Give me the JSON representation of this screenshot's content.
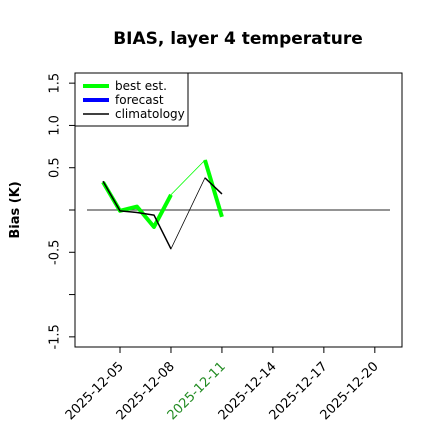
{
  "chart_data": {
    "type": "line",
    "title": "BIAS, layer 4 temperature",
    "y_label": "Bias (K)",
    "x": [
      "2025-12-04",
      "2025-12-05",
      "2025-12-06",
      "2025-12-07",
      "2025-12-08",
      "2025-12-09",
      "2025-12-10",
      "2025-12-11"
    ],
    "series": [
      {
        "name": "best est.",
        "color": "#00ff00",
        "width": 4,
        "values": [
          0.33,
          -0.01,
          0.04,
          -0.2,
          0.18,
          null,
          0.59,
          -0.08
        ]
      },
      {
        "name": "forecast",
        "color": "#0000ff",
        "width": 4,
        "values": [
          null,
          null,
          null,
          null,
          null,
          null,
          null,
          null
        ]
      },
      {
        "name": "climatology",
        "color": "#000000",
        "width": 1.5,
        "values": [
          0.34,
          -0.01,
          -0.03,
          -0.06,
          -0.46,
          null,
          0.38,
          0.19
        ]
      }
    ],
    "xlim": [
      "2025-12-02T08:24",
      "2025-12-21T14:24"
    ],
    "xticks": [
      "2025-12-05",
      "2025-12-08",
      "2025-12-11",
      "2025-12-14",
      "2025-12-17",
      "2025-12-20"
    ],
    "xtick_colors": [
      "#000000",
      "#000000",
      "#228b22",
      "#000000",
      "#000000",
      "#000000"
    ],
    "ylim": [
      -1.62,
      1.62
    ],
    "yticks": [
      {
        "value": -1.5,
        "label": "-1.5"
      },
      {
        "value": -1,
        "label": ""
      },
      {
        "value": -0.5,
        "label": "-0.5"
      },
      {
        "value": 0,
        "label": ""
      },
      {
        "value": 0.5,
        "label": "0.5"
      },
      {
        "value": 1,
        "label": "1.0"
      },
      {
        "value": 1.5,
        "label": "1.5"
      }
    ],
    "hline": 0,
    "legend": "top-left"
  }
}
